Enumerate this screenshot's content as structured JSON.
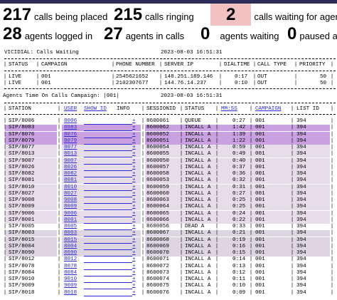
{
  "colors": {
    "accent_link": "#2a2ad0",
    "waiting_highlight": "#f2c2c2",
    "row_purple": "#c9a0e0",
    "row_light": "#e6dcea",
    "row_gray": "#ddd6e2"
  },
  "stats": {
    "calls_placed": {
      "value": "217",
      "label": "calls being placed"
    },
    "calls_ringing": {
      "value": "215",
      "label": "calls ringing"
    },
    "calls_waiting": {
      "value": "2",
      "label": "calls waiting for agents"
    },
    "agents_logged": {
      "value": "28",
      "label": "agents logged in"
    },
    "agents_in_calls": {
      "value": "27",
      "label": "agents in calls"
    },
    "agents_waiting": {
      "value": "0",
      "label": "agents waiting"
    },
    "paused": {
      "value": "0",
      "label": "paused age"
    }
  },
  "calls_waiting": {
    "title": "VICIDIAL: Calls Waiting",
    "timestamp": "2023-08-03 16:51:31",
    "headers": [
      "STATUS",
      "CAMPAIGN",
      "PHONE NUMBER",
      "SERVER IP",
      "DIALTIME",
      "CALL TYPE",
      "PRIORITY"
    ],
    "rows": [
      {
        "status": "LIVE",
        "campaign": "001",
        "phone": "2545621652",
        "server": "148.251.189.146",
        "dialtime": "0:17",
        "calltype": "OUT",
        "priority": "50"
      },
      {
        "status": "LIVE",
        "campaign": "001",
        "phone": "2102307677",
        "server": "144.76.14.237",
        "dialtime": "0:10",
        "calltype": "OUT",
        "priority": "50"
      }
    ]
  },
  "agents": {
    "title": "Agents Time On Calls Campaign: |001|",
    "timestamp": "2023-08-03 16:51:31",
    "headers": {
      "station": "STATION",
      "user": "USER",
      "show_id": "SHOW ID",
      "info": "INFO",
      "session": "SESSIONID",
      "status": "STATUS",
      "mmss": "MM:SS",
      "campaign": "CAMPAIGN",
      "list": "LIST ID"
    },
    "rows": [
      {
        "station": "SIP/8006",
        "user": "8006",
        "session": "8600061",
        "status": "QUEUE",
        "mmss": "0:27",
        "campaign": "001",
        "list": "394",
        "color": "none"
      },
      {
        "station": "SIP/8083",
        "user": "8083",
        "session": "8600062",
        "status": "INCALL A",
        "mmss": "1:42",
        "campaign": "001",
        "list": "394",
        "color": "purple"
      },
      {
        "station": "SIP/8076",
        "user": "8076",
        "session": "8600052",
        "status": "INCALL A",
        "mmss": "1:39",
        "campaign": "001",
        "list": "394",
        "color": "purple"
      },
      {
        "station": "SIP/8079",
        "user": "8079",
        "session": "8600051",
        "status": "INCALL A",
        "mmss": "1:22",
        "campaign": "001",
        "list": "394",
        "color": "purple"
      },
      {
        "station": "SIP/8077",
        "user": "8077",
        "session": "8600054",
        "status": "INCALL A",
        "mmss": "0:59",
        "campaign": "001",
        "list": "394",
        "color": "light"
      },
      {
        "station": "SIP/8013",
        "user": "8013",
        "session": "8600055",
        "status": "INCALL A",
        "mmss": "0:49",
        "campaign": "001",
        "list": "394",
        "color": "light"
      },
      {
        "station": "SIP/9007",
        "user": "9007",
        "session": "8600050",
        "status": "INCALL A",
        "mmss": "0:40",
        "campaign": "001",
        "list": "394",
        "color": "light"
      },
      {
        "station": "SIP/8026",
        "user": "8026",
        "session": "8600057",
        "status": "INCALL A",
        "mmss": "0:37",
        "campaign": "001",
        "list": "394",
        "color": "light"
      },
      {
        "station": "SIP/8082",
        "user": "8082",
        "session": "8600058",
        "status": "INCALL A",
        "mmss": "0:36",
        "campaign": "001",
        "list": "394",
        "color": "light"
      },
      {
        "station": "SIP/8081",
        "user": "8081",
        "session": "8600053",
        "status": "INCALL A",
        "mmss": "0:32",
        "campaign": "001",
        "list": "394",
        "color": "light"
      },
      {
        "station": "SIP/8010",
        "user": "8010",
        "session": "8600059",
        "status": "INCALL A",
        "mmss": "0:31",
        "campaign": "001",
        "list": "394",
        "color": "light"
      },
      {
        "station": "SIP/8027",
        "user": "8027",
        "session": "8600060",
        "status": "INCALL A",
        "mmss": "0:27",
        "campaign": "001",
        "list": "394",
        "color": "light"
      },
      {
        "station": "SIP/9008",
        "user": "9008",
        "session": "8600063",
        "status": "INCALL A",
        "mmss": "0:25",
        "campaign": "001",
        "list": "394",
        "color": "light"
      },
      {
        "station": "SIP/8009",
        "user": "8009",
        "session": "8600064",
        "status": "INCALL A",
        "mmss": "0:25",
        "campaign": "001",
        "list": "394",
        "color": "light"
      },
      {
        "station": "SIP/9006",
        "user": "9006",
        "session": "8600065",
        "status": "INCALL A",
        "mmss": "0:24",
        "campaign": "001",
        "list": "394",
        "color": "light"
      },
      {
        "station": "SIP/8001",
        "user": "8001",
        "session": "8600066",
        "status": "INCALL A",
        "mmss": "0:22",
        "campaign": "001",
        "list": "394",
        "color": "light"
      },
      {
        "station": "SIP/8005",
        "user": "8005",
        "session": "8600056",
        "status": "DEAD A",
        "mmss": "0:33",
        "campaign": "001",
        "list": "394",
        "color": "none"
      },
      {
        "station": "SIP/8003",
        "user": "8003",
        "session": "8600067",
        "status": "INCALL A",
        "mmss": "0:21",
        "campaign": "001",
        "list": "394",
        "color": "gray"
      },
      {
        "station": "SIP/8015",
        "user": "8015",
        "session": "8600068",
        "status": "INCALL A",
        "mmss": "0:19",
        "campaign": "001",
        "list": "394",
        "color": "gray"
      },
      {
        "station": "SIP/8004",
        "user": "8004",
        "session": "8600069",
        "status": "INCALL A",
        "mmss": "0:16",
        "campaign": "001",
        "list": "394",
        "color": "gray"
      },
      {
        "station": "SIP/8090",
        "user": "8090",
        "session": "8600070",
        "status": "INCALL A",
        "mmss": "0:15",
        "campaign": "001",
        "list": "394",
        "color": "gray"
      },
      {
        "station": "SIP/8012",
        "user": "8012",
        "session": "8600071",
        "status": "INCALL A",
        "mmss": "0:14",
        "campaign": "001",
        "list": "394",
        "color": "none"
      },
      {
        "station": "SIP/8078",
        "user": "8078",
        "session": "8600072",
        "status": "INCALL A",
        "mmss": "0:13",
        "campaign": "001",
        "list": "394",
        "color": "none"
      },
      {
        "station": "SIP/8084",
        "user": "8084",
        "session": "8600073",
        "status": "INCALL A",
        "mmss": "0:12",
        "campaign": "001",
        "list": "394",
        "color": "none"
      },
      {
        "station": "SIP/9010",
        "user": "9010",
        "session": "8600074",
        "status": "INCALL A",
        "mmss": "0:11",
        "campaign": "001",
        "list": "394",
        "color": "none"
      },
      {
        "station": "SIP/9009",
        "user": "9009",
        "session": "8600075",
        "status": "INCALL A",
        "mmss": "0:10",
        "campaign": "001",
        "list": "394",
        "color": "none"
      },
      {
        "station": "SIP/8018",
        "user": "8018",
        "session": "8600076",
        "status": "INCALL A",
        "mmss": "0:09",
        "campaign": "001",
        "list": "394",
        "color": "none"
      }
    ]
  }
}
